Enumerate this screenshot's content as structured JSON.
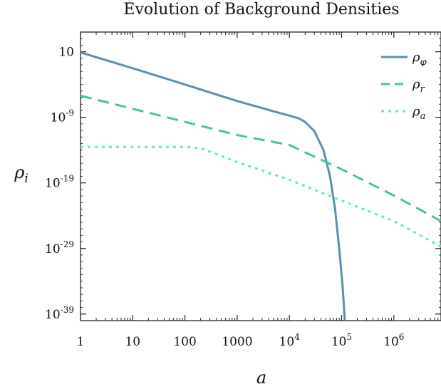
{
  "chart_data": {
    "type": "line",
    "title": "Evolution of Background Densities",
    "xlabel": "a",
    "ylabel": "ρ_i",
    "x_scale": "log",
    "y_scale": "log",
    "xlim": [
      1,
      8000000
    ],
    "ylim": [
      1e-40,
      10000.0
    ],
    "x_ticks": [
      {
        "value": 1,
        "label": "1"
      },
      {
        "value": 10,
        "label": "10"
      },
      {
        "value": 100,
        "label": "100"
      },
      {
        "value": 1000,
        "label": "1000"
      },
      {
        "value": 10000,
        "label": "10",
        "exp": "4"
      },
      {
        "value": 100000,
        "label": "10",
        "exp": "5"
      },
      {
        "value": 1000000,
        "label": "10",
        "exp": "6"
      }
    ],
    "y_ticks": [
      {
        "value": 10,
        "label": "10",
        "exp": ""
      },
      {
        "value": 1e-09,
        "label": "10",
        "exp": "-9"
      },
      {
        "value": 1e-19,
        "label": "10",
        "exp": "-19"
      },
      {
        "value": 1e-29,
        "label": "10",
        "exp": "-29"
      },
      {
        "value": 1e-39,
        "label": "10",
        "exp": "-39"
      }
    ],
    "legend_position": "top-right",
    "series": [
      {
        "name": "ρ_φ",
        "legend_base": "ρ",
        "legend_sub": "φ",
        "color": "#5b8fac",
        "style": "solid",
        "x": [
          1,
          10,
          100,
          1000,
          5000,
          10000,
          15000,
          20000,
          30000,
          45000,
          60000,
          75000,
          90000,
          105000,
          115000
        ],
        "y": [
          8,
          0.03,
          0.0001,
          3e-07,
          8e-09,
          1.8e-09,
          7e-10,
          2e-10,
          8e-12,
          1e-14,
          1e-18,
          1e-23,
          1e-29,
          1e-35,
          1e-40
        ]
      },
      {
        "name": "ρ_r",
        "legend_base": "ρ",
        "legend_sub": "r",
        "color": "#45c49d",
        "style": "dashed",
        "x": [
          1,
          10,
          100,
          1000,
          10000,
          100000,
          1000000,
          8000000
        ],
        "y": [
          2e-06,
          2e-08,
          2e-10,
          2e-12,
          6e-14,
          1.2e-17,
          1.2e-21,
          1.5e-25
        ]
      },
      {
        "name": "ρ_a",
        "legend_base": "ρ",
        "legend_sub": "a",
        "color": "#57f2a9",
        "style": "dotted",
        "x": [
          1,
          10,
          100,
          200,
          1000,
          10000,
          100000,
          1000000,
          8000000
        ],
        "y": [
          3e-14,
          3e-14,
          3e-14,
          2e-14,
          1.5e-16,
          3e-19,
          2e-22,
          1.5e-25,
          2e-29
        ]
      }
    ]
  }
}
